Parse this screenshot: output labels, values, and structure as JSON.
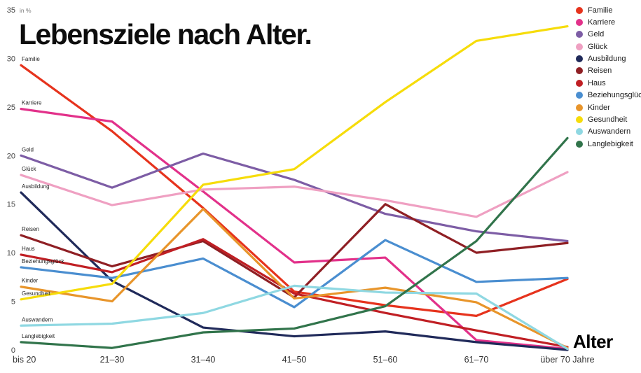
{
  "title": "Lebensziele nach Alter.",
  "chart_data": {
    "type": "line",
    "title": "Lebensziele nach Alter.",
    "unit_label": "in %",
    "x_axis_title": "Alter",
    "categories": [
      "bis 20",
      "21–30",
      "31–40",
      "41–50",
      "51–60",
      "61–70",
      "über 70 Jahre"
    ],
    "y_ticks": [
      0,
      5,
      10,
      15,
      20,
      25,
      30,
      35
    ],
    "ylim": [
      0,
      35
    ],
    "grid": false,
    "legend_position": "top-right",
    "series": [
      {
        "name": "Familie",
        "color": "#e6331d",
        "values": [
          29.3,
          22.5,
          14.6,
          6.0,
          4.6,
          3.5,
          7.3
        ]
      },
      {
        "name": "Karriere",
        "color": "#e2318a",
        "values": [
          24.8,
          23.5,
          16.3,
          9.0,
          9.5,
          1.0,
          0.1
        ]
      },
      {
        "name": "Geld",
        "color": "#7d5da5",
        "values": [
          20.0,
          16.7,
          20.2,
          17.5,
          14.0,
          12.2,
          11.2
        ]
      },
      {
        "name": "Glück",
        "color": "#efa0c2",
        "values": [
          18.0,
          14.9,
          16.5,
          16.8,
          15.4,
          13.7,
          18.3
        ]
      },
      {
        "name": "Ausbildung",
        "color": "#202a5a",
        "values": [
          16.2,
          7.1,
          2.3,
          1.4,
          1.9,
          0.8,
          0.0
        ]
      },
      {
        "name": "Reisen",
        "color": "#8f1f24",
        "values": [
          11.8,
          8.6,
          11.2,
          5.4,
          15.0,
          10.0,
          11.0
        ]
      },
      {
        "name": "Haus",
        "color": "#c01f24",
        "values": [
          9.8,
          8.0,
          11.4,
          5.8,
          3.8,
          2.0,
          0.3
        ]
      },
      {
        "name": "Beziehungsglück",
        "color": "#4a8ed0",
        "values": [
          8.5,
          7.4,
          9.4,
          4.4,
          11.3,
          7.0,
          7.4
        ]
      },
      {
        "name": "Kinder",
        "color": "#e8952b",
        "values": [
          6.5,
          5.0,
          14.5,
          5.3,
          6.4,
          4.9,
          0.2
        ]
      },
      {
        "name": "Gesundheit",
        "color": "#f6dc0a",
        "values": [
          5.2,
          6.8,
          17.0,
          18.6,
          25.5,
          31.8,
          33.3
        ]
      },
      {
        "name": "Auswandern",
        "color": "#8fd8e2",
        "values": [
          2.5,
          2.7,
          3.8,
          6.6,
          5.9,
          5.8,
          0.1
        ]
      },
      {
        "name": "Langlebigkeit",
        "color": "#31744b",
        "values": [
          0.8,
          0.2,
          1.8,
          2.2,
          4.5,
          11.2,
          21.8
        ]
      }
    ]
  }
}
